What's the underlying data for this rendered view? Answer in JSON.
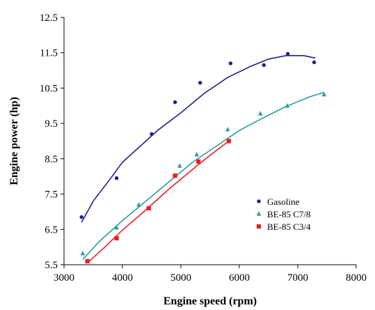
{
  "chart_data": {
    "type": "scatter",
    "title": "",
    "xlabel": "Engine speed (rpm)",
    "ylabel": "Engine power (hp)",
    "xlim": [
      3000,
      8000
    ],
    "ylim": [
      5.5,
      12.5
    ],
    "x_ticks": [
      3000,
      4000,
      5000,
      6000,
      7000,
      8000
    ],
    "y_ticks": [
      5.5,
      6.5,
      7.5,
      8.5,
      9.5,
      10.5,
      11.5,
      12.5
    ],
    "x_tick_labels": [
      "3000",
      "4000",
      "5000",
      "6000",
      "7000",
      "8000"
    ],
    "y_tick_labels": [
      "5.5",
      "6.5",
      "7.5",
      "8.5",
      "9.5",
      "10.5",
      "11.5",
      "12.5"
    ],
    "grid": false,
    "legend_position": "bottom-right",
    "series": [
      {
        "name": "Gasoline",
        "marker": "circle",
        "color": "#1f1f8f",
        "points": [
          [
            3300,
            6.85
          ],
          [
            3900,
            7.95
          ],
          [
            4500,
            9.2
          ],
          [
            4900,
            10.1
          ],
          [
            5330,
            10.65
          ],
          [
            5850,
            11.2
          ],
          [
            6420,
            11.15
          ],
          [
            6830,
            11.47
          ],
          [
            7280,
            11.23
          ]
        ],
        "trend": [
          [
            3300,
            6.7
          ],
          [
            3500,
            7.3
          ],
          [
            3800,
            7.95
          ],
          [
            4000,
            8.4
          ],
          [
            4300,
            8.85
          ],
          [
            4600,
            9.3
          ],
          [
            5000,
            9.8
          ],
          [
            5400,
            10.35
          ],
          [
            5800,
            10.8
          ],
          [
            6200,
            11.12
          ],
          [
            6500,
            11.32
          ],
          [
            6800,
            11.42
          ],
          [
            7100,
            11.42
          ],
          [
            7300,
            11.35
          ]
        ]
      },
      {
        "name": "BE-85 C7/8",
        "marker": "triangle",
        "color": "#2a9d9a",
        "points": [
          [
            3320,
            5.82
          ],
          [
            3900,
            6.55
          ],
          [
            4280,
            7.2
          ],
          [
            4980,
            8.3
          ],
          [
            5270,
            8.62
          ],
          [
            5800,
            9.33
          ],
          [
            6360,
            9.78
          ],
          [
            6820,
            10.0
          ],
          [
            7450,
            10.32
          ]
        ],
        "trend": [
          [
            3320,
            5.65
          ],
          [
            3600,
            6.15
          ],
          [
            4000,
            6.75
          ],
          [
            4400,
            7.3
          ],
          [
            4800,
            7.85
          ],
          [
            5200,
            8.4
          ],
          [
            5600,
            8.85
          ],
          [
            6000,
            9.3
          ],
          [
            6400,
            9.65
          ],
          [
            6800,
            9.98
          ],
          [
            7200,
            10.25
          ],
          [
            7450,
            10.38
          ]
        ]
      },
      {
        "name": "BE-85 C3/4",
        "marker": "square",
        "color": "#ee1c24",
        "points": [
          [
            3400,
            5.6
          ],
          [
            3900,
            6.25
          ],
          [
            4450,
            7.1
          ],
          [
            4900,
            8.02
          ],
          [
            5300,
            8.42
          ],
          [
            5820,
            9.0
          ]
        ],
        "trend": [
          [
            3400,
            5.55
          ],
          [
            3700,
            6.0
          ],
          [
            4000,
            6.48
          ],
          [
            4400,
            7.05
          ],
          [
            4800,
            7.65
          ],
          [
            5200,
            8.2
          ],
          [
            5500,
            8.6
          ],
          [
            5820,
            9.0
          ]
        ]
      }
    ]
  }
}
